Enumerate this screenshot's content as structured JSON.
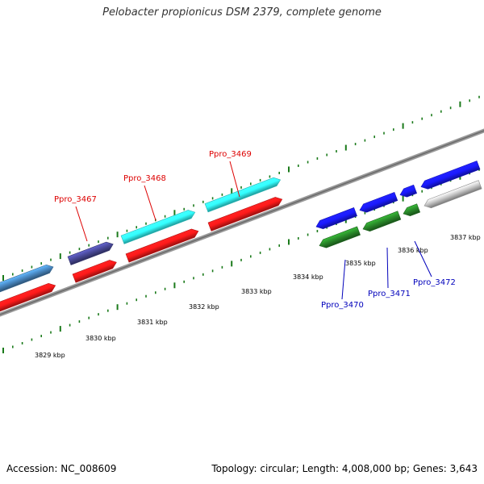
{
  "title": "Pelobacter propionicus DSM 2379, complete genome",
  "footer": {
    "accession": "Accession: NC_008609",
    "topology": "Topology: circular; Length: 4,008,000 bp; Genes: 3,643"
  },
  "colors": {
    "backbone": "#808080",
    "tick": "#1a7a1a",
    "red": "#ff1a1a",
    "cyan": "#33ffff",
    "blue": "#1a1aff",
    "steel": "#4a8ac4",
    "slate": "#4a4a9a",
    "green": "#2a8a2a",
    "grey": "#c8c8c8",
    "label_red": "#dd0000",
    "label_blue": "#0000bb"
  },
  "scale_labels": [
    {
      "text": "3829 kbp"
    },
    {
      "text": "3830 kbp"
    },
    {
      "text": "3831 kbp"
    },
    {
      "text": "3832 kbp"
    },
    {
      "text": "3833 kbp"
    },
    {
      "text": "3834 kbp"
    },
    {
      "text": "3835 kbp"
    },
    {
      "text": "3836 kbp"
    },
    {
      "text": "3837 kbp"
    }
  ],
  "gene_labels": [
    {
      "text": "Ppro_3467",
      "color": "label_red"
    },
    {
      "text": "Ppro_3468",
      "color": "label_red"
    },
    {
      "text": "Ppro_3469",
      "color": "label_red"
    },
    {
      "text": "Ppro_3470",
      "color": "label_blue"
    },
    {
      "text": "Ppro_3471",
      "color": "label_blue"
    },
    {
      "text": "Ppro_3472",
      "color": "label_blue"
    }
  ],
  "features": [
    {
      "name": "steel-feature",
      "color": "steel",
      "strand": "+",
      "track": "outer"
    },
    {
      "name": "slate-feature",
      "color": "slate",
      "strand": "+",
      "track": "outer"
    },
    {
      "name": "cyan-feature-3468",
      "color": "cyan",
      "strand": "+",
      "track": "outer"
    },
    {
      "name": "cyan-feature-3469",
      "color": "cyan",
      "strand": "+",
      "track": "outer"
    },
    {
      "name": "red-feature-1",
      "color": "red",
      "strand": "+",
      "track": "inner"
    },
    {
      "name": "red-feature-2",
      "color": "red",
      "strand": "+",
      "track": "inner"
    },
    {
      "name": "red-feature-3",
      "color": "red",
      "strand": "+",
      "track": "inner"
    },
    {
      "name": "red-feature-4",
      "color": "red",
      "strand": "+",
      "track": "inner"
    },
    {
      "name": "blue-feature-1",
      "color": "blue",
      "strand": "-",
      "track": "outer"
    },
    {
      "name": "blue-feature-2",
      "color": "blue",
      "strand": "-",
      "track": "outer"
    },
    {
      "name": "blue-feature-3",
      "color": "blue",
      "strand": "-",
      "track": "outer"
    },
    {
      "name": "blue-feature-4",
      "color": "blue",
      "strand": "-",
      "track": "outer"
    },
    {
      "name": "green-feature-3470",
      "color": "green",
      "strand": "-",
      "track": "inner"
    },
    {
      "name": "green-feature-3471",
      "color": "green",
      "strand": "-",
      "track": "inner"
    },
    {
      "name": "green-feature-3472",
      "color": "green",
      "strand": "-",
      "track": "inner"
    },
    {
      "name": "grey-feature",
      "color": "grey",
      "strand": "-",
      "track": "inner"
    }
  ]
}
